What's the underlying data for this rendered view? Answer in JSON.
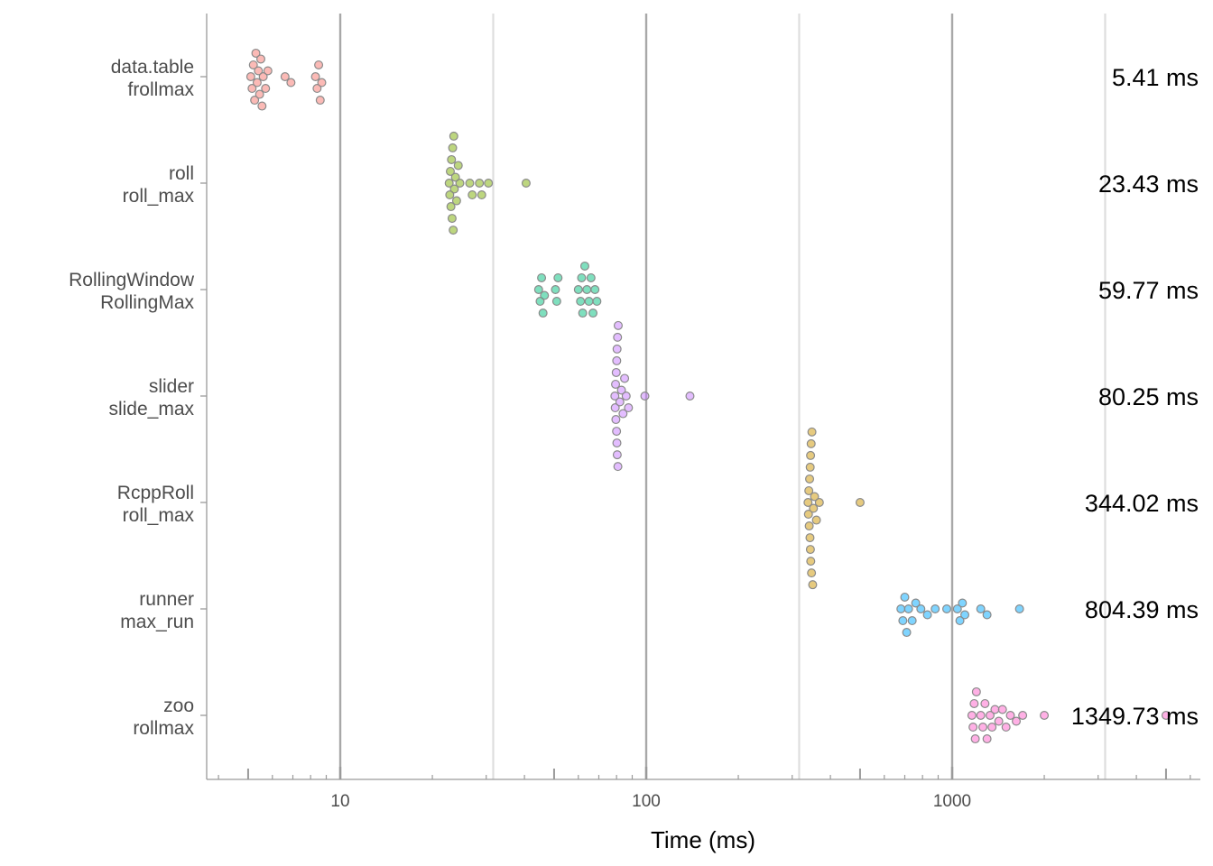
{
  "chart_data": {
    "type": "scatter",
    "subtype": "beeswarm",
    "xlabel": "Time (ms)",
    "x_scale": "log10",
    "xlim": [
      3.6,
      5900
    ],
    "x_major_ticks": [
      10,
      100,
      1000
    ],
    "x_tick_labels": [
      "10",
      "100",
      "1000"
    ],
    "grid": "vertical",
    "legend": "none",
    "series": [
      {
        "label_line1": "data.table",
        "label_line2": "frollmax",
        "median_label": "5.41 ms",
        "color": "#F8766D",
        "values": [
          5.1,
          5.15,
          5.2,
          5.25,
          5.3,
          5.35,
          5.4,
          5.45,
          5.5,
          5.55,
          5.6,
          5.7,
          5.8,
          6.6,
          6.9,
          8.3,
          8.4,
          8.5,
          8.6,
          8.7
        ]
      },
      {
        "label_line1": "roll",
        "label_line2": "roll_max",
        "median_label": "23.43 ms",
        "color": "#7CAE00",
        "values": [
          22.7,
          22.8,
          22.9,
          23.0,
          23.1,
          23.2,
          23.3,
          23.4,
          23.5,
          23.6,
          23.8,
          24.0,
          24.3,
          24.6,
          26.5,
          27.0,
          28.5,
          29.0,
          30.5,
          40.5
        ]
      },
      {
        "label_line1": "RollingWindow",
        "label_line2": "RollingMax",
        "median_label": "59.77 ms",
        "color": "#00BF7D",
        "values": [
          44.5,
          45.0,
          45.5,
          46.0,
          46.5,
          50.5,
          51.0,
          51.5,
          60.0,
          61.0,
          61.5,
          62.0,
          63.0,
          64.0,
          65.0,
          66.0,
          67.0,
          68.0,
          69.0
        ]
      },
      {
        "label_line1": "slider",
        "label_line2": "slide_max",
        "median_label": "80.25 ms",
        "color": "#C77CFF",
        "values": [
          79.0,
          79.2,
          79.4,
          79.6,
          79.8,
          80.0,
          80.1,
          80.2,
          80.3,
          80.4,
          80.6,
          80.8,
          81.0,
          82.0,
          83.0,
          84.0,
          85.0,
          86.0,
          87.5,
          99.0,
          139.0
        ]
      },
      {
        "label_line1": "RcppRoll",
        "label_line2": "roll_max",
        "median_label": "344.02 ms",
        "color": "#CD9600",
        "values": [
          338,
          339,
          340,
          341,
          342,
          343,
          343.5,
          344,
          344.5,
          345,
          346,
          347,
          348,
          350,
          352,
          355,
          360,
          368,
          500
        ]
      },
      {
        "label_line1": "runner",
        "label_line2": "max_run",
        "median_label": "804.39 ms",
        "color": "#00A9FF",
        "values": [
          680,
          690,
          700,
          710,
          720,
          740,
          760,
          790,
          830,
          880,
          960,
          1040,
          1060,
          1080,
          1100,
          1240,
          1300,
          1660
        ]
      },
      {
        "label_line1": "zoo",
        "label_line2": "rollmax",
        "median_label": "1349.73 ms",
        "color": "#FF61CC",
        "values": [
          1160,
          1170,
          1180,
          1190,
          1200,
          1240,
          1260,
          1280,
          1300,
          1330,
          1350,
          1380,
          1420,
          1460,
          1500,
          1550,
          1620,
          1700,
          2000,
          5000
        ]
      }
    ]
  }
}
